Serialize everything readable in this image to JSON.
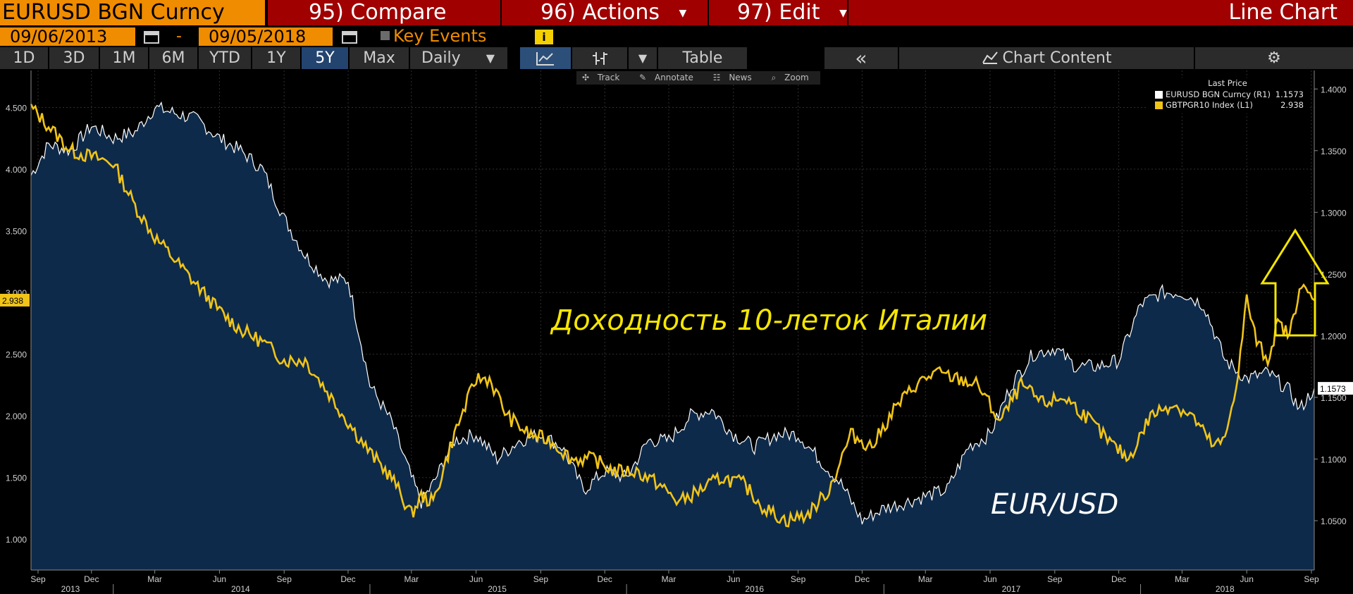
{
  "header": {
    "ticker": "EURUSD BGN Curncy",
    "menu": [
      "95) Compare",
      "96) Actions",
      "97) Edit"
    ],
    "chart_type": "Line Chart"
  },
  "date_range": {
    "start": "09/06/2013",
    "separator": "-",
    "end": "09/05/2018"
  },
  "key_events": {
    "label": "Key Events",
    "info": "i"
  },
  "toolbar": {
    "periods": [
      "1D",
      "3D",
      "1M",
      "6M",
      "YTD",
      "1Y",
      "5Y",
      "Max"
    ],
    "active_period": "5Y",
    "frequency": "Daily",
    "table_label": "Table",
    "collapse_label": "«",
    "chart_content_label": "Chart Content"
  },
  "mini_tools": [
    "Track",
    "Annotate",
    "News",
    "Zoom"
  ],
  "legend": {
    "title": "Last Price",
    "items": [
      {
        "name": "EURUSD BGN Curncy  (R1)",
        "value": "1.1573",
        "color": "#ffffff"
      },
      {
        "name": "GBTPGR10 Index  (L1)",
        "value": "2.938",
        "color": "#f0c419"
      }
    ]
  },
  "annotations": {
    "italy": "Доходность 10-леток Италии",
    "eurusd": "EUR/USD"
  },
  "colors": {
    "accent_orange": "#f08c00",
    "menu_red": "#a00000",
    "yield_line": "#f0c419",
    "fx_line": "#ffffff",
    "fx_area": "#0e2a4a",
    "annotation_yellow": "#f5e600"
  },
  "chart_data": {
    "type": "line",
    "x_range": [
      "2013-09-06",
      "2018-09-05"
    ],
    "x_tick_labels": [
      "Sep",
      "Dec",
      "Mar",
      "Jun",
      "Sep",
      "Dec",
      "Mar",
      "Jun",
      "Sep",
      "Dec",
      "Mar",
      "Jun",
      "Sep",
      "Dec",
      "Mar",
      "Jun",
      "Sep",
      "Dec",
      "Mar",
      "Jun",
      "Sep"
    ],
    "year_labels": [
      "2013",
      "2014",
      "2015",
      "2016",
      "2017",
      "2018"
    ],
    "left_axis": {
      "ticks": [
        "1.000",
        "1.500",
        "2.000",
        "2.500",
        "3.000",
        "3.500",
        "4.000",
        "4.500"
      ],
      "ylim": [
        0.75,
        4.8
      ]
    },
    "right_axis": {
      "ticks": [
        "1.0500",
        "1.1000",
        "1.1500",
        "1.2000",
        "1.2500",
        "1.3000",
        "1.3500",
        "1.4000"
      ],
      "ylim": [
        1.01,
        1.415
      ]
    },
    "last_value_left": "2.938",
    "last_value_right": "1.1573",
    "series": [
      {
        "name": "GBTPGR10 Index",
        "axis": "left",
        "x": [
          "2013-09-06",
          "2013-10-01",
          "2013-11-01",
          "2013-12-01",
          "2014-01-01",
          "2014-02-01",
          "2014-03-01",
          "2014-04-01",
          "2014-05-01",
          "2014-06-01",
          "2014-07-01",
          "2014-08-01",
          "2014-09-01",
          "2014-10-01",
          "2014-11-01",
          "2014-12-01",
          "2015-01-01",
          "2015-02-01",
          "2015-03-01",
          "2015-03-15",
          "2015-04-01",
          "2015-05-01",
          "2015-06-01",
          "2015-06-20",
          "2015-07-15",
          "2015-08-15",
          "2015-09-15",
          "2015-10-15",
          "2015-11-15",
          "2015-12-15",
          "2016-01-15",
          "2016-02-15",
          "2016-03-15",
          "2016-04-15",
          "2016-05-15",
          "2016-06-15",
          "2016-07-15",
          "2016-08-15",
          "2016-09-15",
          "2016-10-15",
          "2016-11-15",
          "2016-12-15",
          "2017-01-15",
          "2017-02-15",
          "2017-03-15",
          "2017-04-15",
          "2017-05-15",
          "2017-06-15",
          "2017-07-15",
          "2017-08-15",
          "2017-09-15",
          "2017-10-15",
          "2017-11-15",
          "2017-12-15",
          "2018-01-15",
          "2018-02-15",
          "2018-03-15",
          "2018-04-15",
          "2018-05-01",
          "2018-05-20",
          "2018-06-01",
          "2018-06-15",
          "2018-07-01",
          "2018-07-15",
          "2018-08-01",
          "2018-08-15",
          "2018-09-05"
        ],
        "values": [
          4.5,
          4.35,
          4.15,
          4.1,
          4.05,
          3.7,
          3.45,
          3.25,
          3.05,
          2.85,
          2.7,
          2.6,
          2.45,
          2.45,
          2.2,
          1.95,
          1.7,
          1.5,
          1.2,
          1.35,
          1.3,
          1.85,
          2.3,
          2.3,
          2.0,
          1.85,
          1.8,
          1.65,
          1.65,
          1.55,
          1.55,
          1.45,
          1.3,
          1.4,
          1.5,
          1.45,
          1.25,
          1.15,
          1.2,
          1.4,
          1.85,
          1.75,
          2.05,
          2.25,
          2.35,
          2.3,
          2.25,
          1.95,
          2.25,
          2.1,
          2.15,
          2.0,
          1.8,
          1.65,
          2.0,
          2.1,
          2.0,
          1.75,
          1.8,
          2.35,
          2.95,
          2.6,
          2.45,
          2.75,
          2.65,
          3.05,
          2.938
        ]
      },
      {
        "name": "EURUSD BGN Curncy",
        "axis": "right",
        "x": [
          "2013-09-06",
          "2013-10-01",
          "2013-11-01",
          "2013-12-01",
          "2014-01-01",
          "2014-02-01",
          "2014-03-01",
          "2014-04-01",
          "2014-05-01",
          "2014-06-01",
          "2014-07-01",
          "2014-08-01",
          "2014-09-01",
          "2014-10-01",
          "2014-11-01",
          "2014-12-01",
          "2015-01-01",
          "2015-02-01",
          "2015-03-01",
          "2015-03-15",
          "2015-04-01",
          "2015-05-01",
          "2015-06-01",
          "2015-07-01",
          "2015-08-01",
          "2015-09-01",
          "2015-10-01",
          "2015-11-01",
          "2015-12-01",
          "2016-01-01",
          "2016-02-01",
          "2016-03-01",
          "2016-04-01",
          "2016-05-01",
          "2016-06-01",
          "2016-07-01",
          "2016-08-01",
          "2016-09-01",
          "2016-10-01",
          "2016-11-01",
          "2016-12-01",
          "2017-01-01",
          "2017-02-01",
          "2017-03-01",
          "2017-04-01",
          "2017-05-01",
          "2017-06-01",
          "2017-07-01",
          "2017-08-01",
          "2017-09-01",
          "2017-10-01",
          "2017-11-01",
          "2017-12-01",
          "2018-01-01",
          "2018-02-01",
          "2018-03-01",
          "2018-04-01",
          "2018-05-01",
          "2018-06-01",
          "2018-07-01",
          "2018-08-01",
          "2018-08-15",
          "2018-09-05"
        ],
        "values": [
          1.33,
          1.355,
          1.35,
          1.37,
          1.36,
          1.365,
          1.385,
          1.38,
          1.375,
          1.36,
          1.35,
          1.335,
          1.295,
          1.265,
          1.245,
          1.245,
          1.16,
          1.13,
          1.085,
          1.065,
          1.08,
          1.115,
          1.12,
          1.1,
          1.115,
          1.12,
          1.11,
          1.075,
          1.09,
          1.085,
          1.115,
          1.115,
          1.135,
          1.14,
          1.12,
          1.11,
          1.12,
          1.12,
          1.1,
          1.08,
          1.05,
          1.06,
          1.065,
          1.07,
          1.075,
          1.11,
          1.12,
          1.16,
          1.185,
          1.19,
          1.175,
          1.175,
          1.18,
          1.225,
          1.235,
          1.235,
          1.225,
          1.18,
          1.165,
          1.17,
          1.155,
          1.14,
          1.1573
        ]
      }
    ]
  }
}
